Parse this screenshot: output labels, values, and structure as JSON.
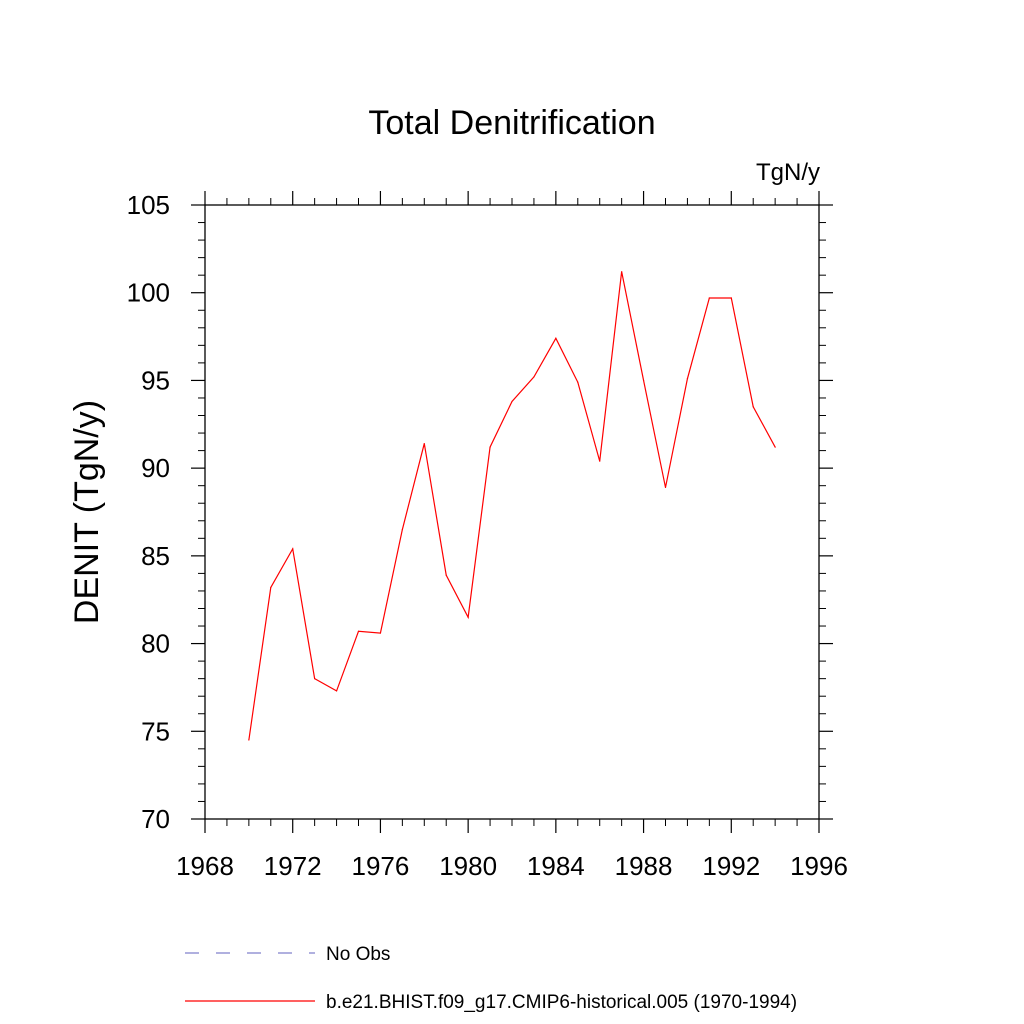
{
  "chart_data": {
    "type": "line",
    "title": "Total Denitrification",
    "units_label": "TgN/y",
    "ylabel": "DENIT  (TgN/y)",
    "xlabel": "",
    "xlim": [
      1968,
      1996
    ],
    "ylim": [
      70,
      105
    ],
    "x_ticks": [
      1968,
      1972,
      1976,
      1980,
      1984,
      1988,
      1992,
      1996
    ],
    "y_ticks": [
      70,
      75,
      80,
      85,
      90,
      95,
      100,
      105
    ],
    "x_tick_labels": [
      "1968",
      "1972",
      "1976",
      "1980",
      "1984",
      "1988",
      "1992",
      "1996"
    ],
    "y_tick_labels": [
      "70",
      "75",
      "80",
      "85",
      "90",
      "95",
      "100",
      "105"
    ],
    "grid": false,
    "legend_position": "bottom",
    "series": [
      {
        "name": "b.e21.BHIST.f09_g17.CMIP6-historical.005 (1970-1994)",
        "color": "#ff0000",
        "style": "solid",
        "x": [
          1970,
          1971,
          1972,
          1973,
          1974,
          1975,
          1976,
          1977,
          1978,
          1979,
          1980,
          1981,
          1982,
          1983,
          1984,
          1985,
          1986,
          1987,
          1988,
          1989,
          1990,
          1991,
          1992,
          1993,
          1994
        ],
        "values": [
          74.5,
          83.2,
          85.4,
          78.0,
          77.3,
          80.7,
          80.6,
          86.5,
          91.4,
          83.9,
          81.5,
          91.2,
          93.8,
          95.2,
          97.4,
          94.9,
          90.4,
          101.2,
          95.0,
          88.9,
          95.1,
          99.7,
          99.7,
          93.5,
          91.2
        ]
      }
    ],
    "legend": [
      {
        "label": "No Obs",
        "color": "#8080cc",
        "style": "dashed"
      },
      {
        "label": "b.e21.BHIST.f09_g17.CMIP6-historical.005 (1970-1994)",
        "color": "#ff0000",
        "style": "solid"
      }
    ]
  }
}
